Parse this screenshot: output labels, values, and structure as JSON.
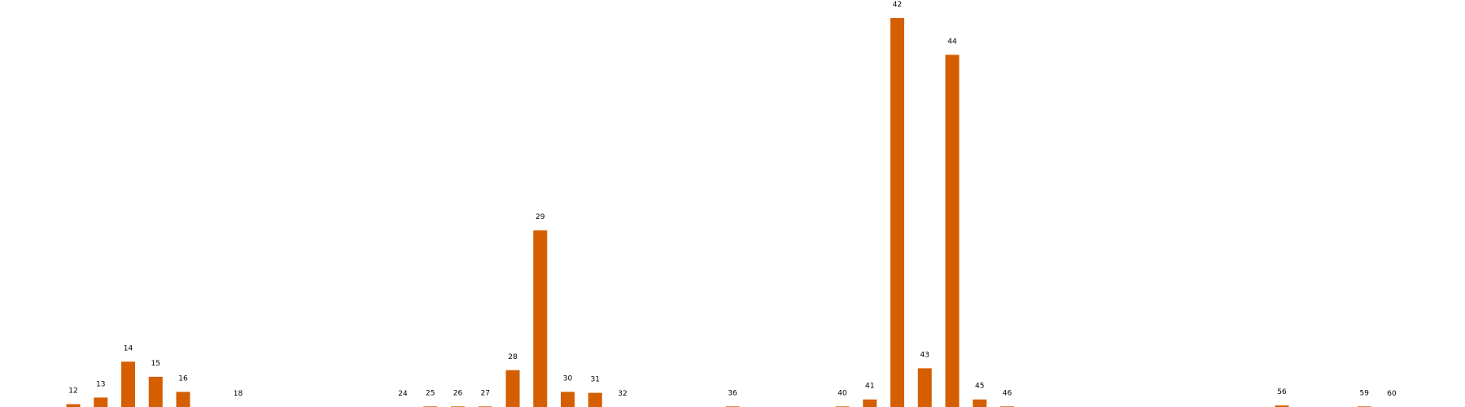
{
  "chart_data": {
    "type": "bar",
    "title": "",
    "xlabel": "",
    "ylabel": "",
    "categories": [
      "12",
      "13",
      "14",
      "15",
      "16",
      "18",
      "24",
      "25",
      "26",
      "27",
      "28",
      "29",
      "30",
      "31",
      "32",
      "36",
      "40",
      "41",
      "42",
      "43",
      "44",
      "45",
      "46",
      "56",
      "59",
      "60"
    ],
    "values": [
      1.5,
      5.0,
      24.0,
      16.0,
      8.0,
      0.0,
      0.0,
      0.3,
      0.3,
      0.3,
      19.5,
      93.5,
      8.0,
      7.5,
      0.0,
      0.3,
      0.3,
      4.0,
      206.0,
      20.5,
      186.5,
      4.0,
      0.3,
      0.8,
      0.3,
      0.0
    ],
    "ylim": [
      0,
      210
    ],
    "grid": false,
    "legend": "none",
    "colors": {
      "bar": "#d55e00",
      "label": "#000000",
      "background": "#ffffff"
    }
  }
}
